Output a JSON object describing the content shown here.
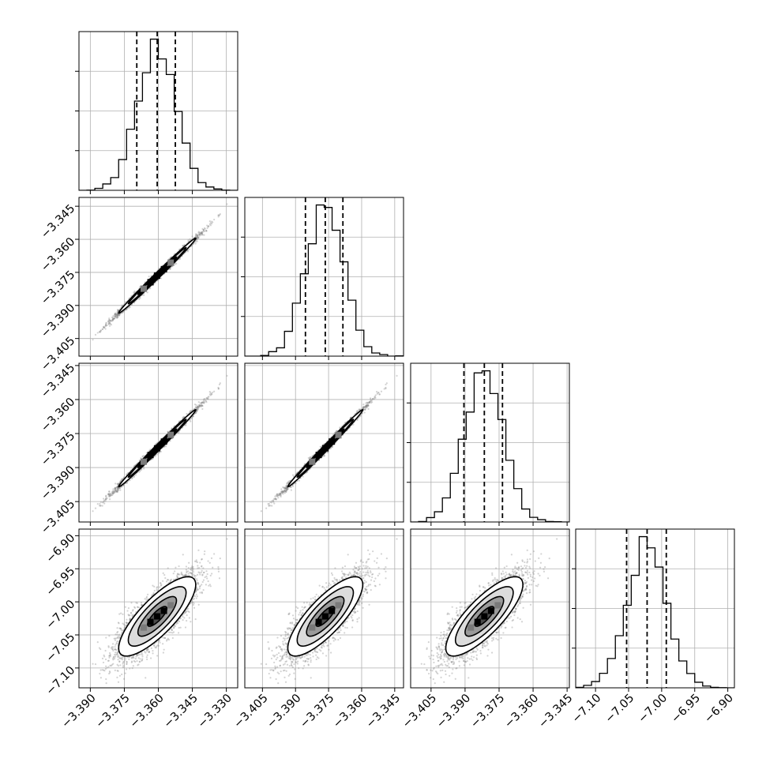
{
  "chart_data": {
    "type": "corner",
    "grid": true,
    "colors": {
      "line": "#000000",
      "grid": "#b0b0b0",
      "points": "#808080",
      "background": "#ffffff"
    },
    "parameters": [
      {
        "range": [
          -3.395,
          -3.325
        ],
        "ticks": [
          -3.39,
          -3.375,
          -3.36,
          -3.345,
          -3.33
        ],
        "tick_labels": [
          "−3.390",
          "−3.375",
          "−3.360",
          "−3.345",
          "−3.330"
        ],
        "mean": -3.3605,
        "sigma": 0.0085,
        "quantiles": [
          -3.3695,
          -3.3605,
          -3.3525
        ]
      },
      {
        "range": [
          -3.413,
          -3.341
        ],
        "ticks": [
          -3.405,
          -3.39,
          -3.375,
          -3.36,
          -3.345
        ],
        "tick_labels": [
          "−3.405",
          "−3.390",
          "−3.375",
          "−3.360",
          "−3.345"
        ],
        "mean": -3.3765,
        "sigma": 0.0085,
        "quantiles": [
          -3.3855,
          -3.3765,
          -3.3685
        ]
      },
      {
        "range": [
          -3.414,
          -3.344
        ],
        "ticks": [
          -3.405,
          -3.39,
          -3.375,
          -3.36,
          -3.345
        ],
        "tick_labels": [
          "−3.405",
          "−3.390",
          "−3.375",
          "−3.360",
          "−3.345"
        ],
        "mean": -3.3815,
        "sigma": 0.0085,
        "quantiles": [
          -3.3905,
          -3.3815,
          -3.3735
        ]
      },
      {
        "range": [
          -7.13,
          -6.89
        ],
        "ticks": [
          -7.1,
          -7.05,
          -7.0,
          -6.95,
          -6.9
        ],
        "tick_labels": [
          "−7.10",
          "−7.05",
          "−7.00",
          "−6.95",
          "−6.90"
        ],
        "mean": -7.022,
        "sigma": 0.03,
        "quantiles": [
          -7.053,
          -7.022,
          -6.993
        ]
      }
    ],
    "correlations": [
      [
        1,
        0.995,
        0.995,
        0.8
      ],
      [
        0.995,
        1,
        0.995,
        0.8
      ],
      [
        0.995,
        0.995,
        1,
        0.8
      ],
      [
        0.8,
        0.8,
        0.8,
        1
      ]
    ],
    "contour_levels_sigma": [
      0.5,
      1.0,
      1.5,
      2.0
    ],
    "n_samples": 4000
  }
}
